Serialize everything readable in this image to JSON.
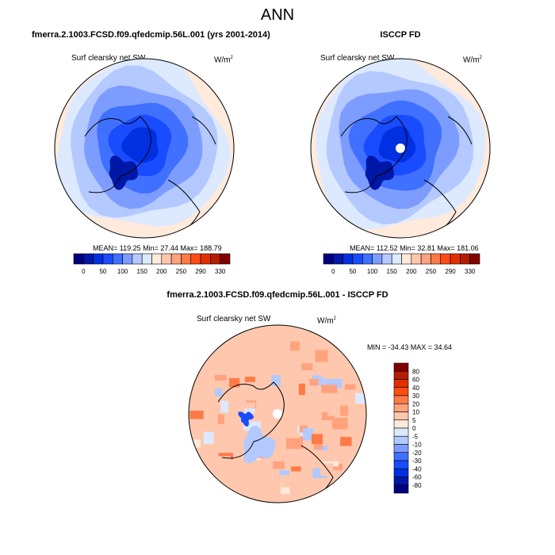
{
  "title": "ANN",
  "panels": [
    {
      "title": "fmerra.2.1003.FCSD.f09.qfedcmip.56L.001 (yrs 2001-2014)",
      "variable": "Surf clearsky net SW",
      "units": "W/m",
      "units_sup": "2",
      "stats": "MEAN= 119.25  Min=  27.44  Max= 188.79"
    },
    {
      "title": "ISCCP FD",
      "variable": "Surf clearsky net SW",
      "units": "W/m",
      "units_sup": "2",
      "stats": "MEAN= 112.52  Min=  32.81  Max= 181.06"
    },
    {
      "title": "fmerra.2.1003.FCSD.f09.qfedcmip.56L.001 - ISCCP FD",
      "variable": "Surf clearsky net SW",
      "units": "W/m",
      "units_sup": "2",
      "stats": "MIN = -34.43 MAX =  34.64"
    }
  ],
  "chart_data": [
    {
      "type": "heatmap",
      "projection": "north polar stereographic",
      "title": "fmerra.2.1003.FCSD.f09.qfedcmip.56L.001 (yrs 2001-2014)",
      "mean": 119.25,
      "min": 27.44,
      "max": 188.79,
      "colorbar": {
        "orientation": "horizontal",
        "tick_labels": [
          "0",
          "50",
          "100",
          "150",
          "200",
          "250",
          "290",
          "330"
        ],
        "colors": [
          "#00007f",
          "#0017a8",
          "#0030e0",
          "#1a4cff",
          "#3f70ff",
          "#7d9cff",
          "#b3c9ff",
          "#dde9ff",
          "#ffeadb",
          "#ffc8ae",
          "#ffa27d",
          "#ff7a46",
          "#ff4c14",
          "#e03000",
          "#b41e00",
          "#800000"
        ]
      }
    },
    {
      "type": "heatmap",
      "projection": "north polar stereographic",
      "title": "ISCCP FD",
      "mean": 112.52,
      "min": 32.81,
      "max": 181.06,
      "colorbar": {
        "orientation": "horizontal",
        "tick_labels": [
          "0",
          "50",
          "100",
          "150",
          "200",
          "250",
          "290",
          "330"
        ],
        "colors": [
          "#00007f",
          "#0017a8",
          "#0030e0",
          "#1a4cff",
          "#3f70ff",
          "#7d9cff",
          "#b3c9ff",
          "#dde9ff",
          "#ffeadb",
          "#ffc8ae",
          "#ffa27d",
          "#ff7a46",
          "#ff4c14",
          "#e03000",
          "#b41e00",
          "#800000"
        ]
      }
    },
    {
      "type": "heatmap",
      "projection": "north polar stereographic",
      "title": "fmerra.2.1003.FCSD.f09.qfedcmip.56L.001 - ISCCP FD",
      "min": -34.43,
      "max": 34.64,
      "colorbar": {
        "orientation": "vertical",
        "tick_labels": [
          "80",
          "60",
          "40",
          "30",
          "20",
          "10",
          "5",
          "0",
          "-5",
          "-10",
          "-20",
          "-30",
          "-40",
          "-60",
          "-80"
        ],
        "colors": [
          "#800000",
          "#b41e00",
          "#e03000",
          "#ff4c14",
          "#ff7a46",
          "#ffa27d",
          "#ffc8ae",
          "#ffeadb",
          "#dde9ff",
          "#b3c9ff",
          "#7d9cff",
          "#3f70ff",
          "#1a4cff",
          "#0030e0",
          "#0017a8",
          "#00007f"
        ]
      }
    }
  ]
}
